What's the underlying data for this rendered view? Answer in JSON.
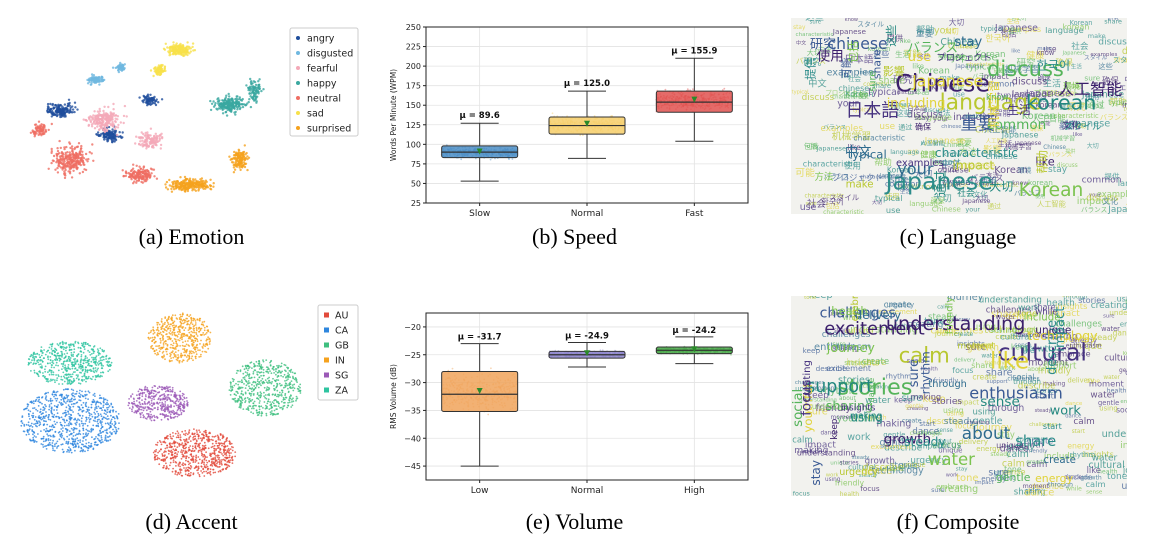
{
  "captions": {
    "a": "(a) Emotion",
    "b": "(b) Speed",
    "c": "(c) Language",
    "d": "(d) Accent",
    "e": "(e) Volume",
    "f": "(f) Composite"
  },
  "chart_data": [
    {
      "id": "emotion",
      "type": "scatter",
      "title": "",
      "legend": [
        "angry",
        "disgusted",
        "fearful",
        "happy",
        "neutral",
        "sad",
        "surprised"
      ],
      "legend_position": "top-right",
      "colors": [
        "#1f4e9c",
        "#6fb8e0",
        "#f4a9b8",
        "#3aa8a0",
        "#ef6e63",
        "#f7e14a",
        "#f5a21e"
      ]
    },
    {
      "id": "speed",
      "type": "box",
      "ylabel": "Words Per Minute (WPM)",
      "ylim": [
        25,
        250
      ],
      "yticks": [
        25,
        50,
        75,
        100,
        125,
        150,
        175,
        200,
        225,
        250
      ],
      "categories": [
        "Slow",
        "Normal",
        "Fast"
      ],
      "colors": [
        "#4a8dc6",
        "#f6ce6a",
        "#e0514f"
      ],
      "boxes": [
        {
          "whislo": 53,
          "q1": 83,
          "med": 90,
          "q3": 98,
          "whishi": 127,
          "mean": 89.6,
          "mean_label": "μ = 89.6",
          "pt_lo": 45,
          "pt_hi": 130
        },
        {
          "whislo": 82,
          "q1": 113,
          "med": 124,
          "q3": 135,
          "whishi": 168,
          "mean": 125.0,
          "mean_label": "μ = 125.0",
          "pt_lo": 80,
          "pt_hi": 172
        },
        {
          "whislo": 104,
          "q1": 141,
          "med": 154,
          "q3": 168,
          "whishi": 210,
          "mean": 155.9,
          "mean_label": "μ = 155.9",
          "pt_lo": 103,
          "pt_hi": 245
        }
      ]
    },
    {
      "id": "language",
      "type": "wordcloud",
      "words": [
        "Chinese",
        "chinese",
        "Japanese",
        "discuss",
        "language",
        "日本語",
        "korean",
        "Korean",
        "Japanese",
        "your",
        "人工智能",
        "重要",
        "한국어",
        "common",
        "影響",
        "文化",
        "通过",
        "包括",
        "机械学習",
        "中文",
        "使用",
        "可能",
        "characteristic",
        "know",
        "make",
        "プロジェクト",
        "社会",
        "健康",
        "including",
        "stay",
        "like",
        "share",
        "提供",
        "sure",
        "impact",
        "examples",
        "这些",
        "方法",
        "use",
        "typical",
        "确保",
        "研究",
        "スタイル",
        "バランス",
        "帮助",
        "生活",
        "大切",
        "環境"
      ]
    },
    {
      "id": "accent",
      "type": "scatter",
      "legend": [
        "AU",
        "CA",
        "GB",
        "IN",
        "SG",
        "ZA"
      ],
      "legend_position": "top-right",
      "colors": [
        "#e24a3b",
        "#2e86de",
        "#3fbf7f",
        "#f5a21e",
        "#9b59b6",
        "#2ec4a0"
      ]
    },
    {
      "id": "volume",
      "type": "box",
      "ylabel": "RMS Volume (dB)",
      "ylim": [
        -47.5,
        -17.5
      ],
      "yticks": [
        -45,
        -40,
        -35,
        -30,
        -25,
        -20
      ],
      "categories": [
        "Low",
        "Normal",
        "High"
      ],
      "colors": [
        "#f0a35a",
        "#8e86cc",
        "#4aa84a"
      ],
      "boxes": [
        {
          "whislo": -45,
          "q1": -35.2,
          "med": -32.1,
          "q3": -28,
          "whishi": -23,
          "mean": -31.7,
          "mean_label": "μ = -31.7",
          "pt_lo": -46,
          "pt_hi": -22
        },
        {
          "whislo": -27.2,
          "q1": -25.6,
          "med": -25,
          "q3": -24.4,
          "whishi": -22.8,
          "mean": -24.9,
          "mean_label": "μ = -24.9",
          "pt_lo": -27.5,
          "pt_hi": -22.5
        },
        {
          "whislo": -26.6,
          "q1": -24.8,
          "med": -24.2,
          "q3": -23.6,
          "whishi": -21.8,
          "mean": -24.2,
          "mean_label": "μ = -24.2",
          "pt_lo": -27,
          "pt_hi": -21.5
        }
      ]
    },
    {
      "id": "composite",
      "type": "wordcloud",
      "words": [
        "understanding",
        "challenges",
        "share",
        "stories",
        "calm",
        "cultural",
        "support",
        "water",
        "like",
        "about",
        "excitement",
        "enthusiasm",
        "describe",
        "gentle",
        "tone",
        "creating",
        "making",
        "health",
        "energy",
        "delivery",
        "growth",
        "rhythm",
        "steady",
        "sharing",
        "embrace",
        "while",
        "using",
        "friendly",
        "youthful",
        "create",
        "unique",
        "sure",
        "start",
        "social",
        "moment",
        "insights",
        "work",
        "journey",
        "technology",
        "through",
        "keep",
        "stay",
        "impact",
        "dance",
        "urgency",
        "focus",
        "sense",
        "include"
      ]
    }
  ]
}
